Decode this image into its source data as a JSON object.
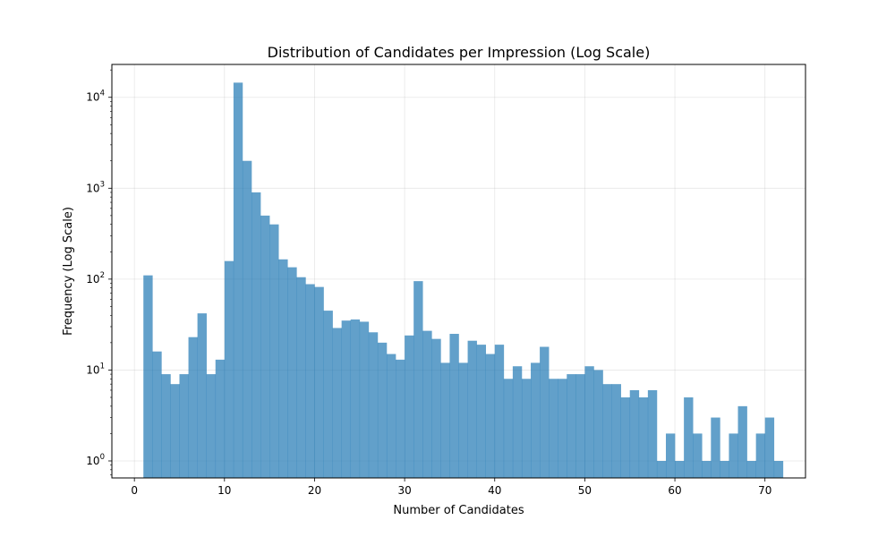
{
  "chart_data": {
    "type": "bar",
    "title": "Distribution of Candidates per Impression (Log Scale)",
    "xlabel": "Number of Candidates",
    "ylabel": "Frequency (Log Scale)",
    "xlim": [
      -2.5,
      74.5
    ],
    "ylim": [
      0.65,
      23000
    ],
    "yscale": "log",
    "grid": true,
    "bar_color": "#1f77b4",
    "bar_opacity": 0.7,
    "x_ticks": [
      0,
      10,
      20,
      30,
      40,
      50,
      60,
      70
    ],
    "y_ticks": [
      {
        "value": 1,
        "base": "10",
        "exp": "0"
      },
      {
        "value": 10,
        "base": "10",
        "exp": "1"
      },
      {
        "value": 100,
        "base": "10",
        "exp": "2"
      },
      {
        "value": 1000,
        "base": "10",
        "exp": "3"
      },
      {
        "value": 10000,
        "base": "10",
        "exp": "4"
      }
    ],
    "bin_width": 1,
    "bin_start": 1,
    "values": [
      110,
      16,
      9,
      7,
      9,
      23,
      42,
      9,
      13,
      158,
      14500,
      2000,
      900,
      500,
      400,
      165,
      135,
      105,
      88,
      82,
      45,
      29,
      35,
      36,
      34,
      26,
      20,
      15,
      13,
      24,
      95,
      27,
      22,
      12,
      25,
      12,
      21,
      19,
      15,
      19,
      8,
      11,
      8,
      12,
      18,
      8,
      8,
      9,
      9,
      11,
      10,
      7,
      7,
      5,
      6,
      5,
      6,
      1,
      2,
      1,
      5,
      2,
      1,
      3,
      1,
      2,
      4,
      1,
      2,
      3,
      1
    ]
  }
}
